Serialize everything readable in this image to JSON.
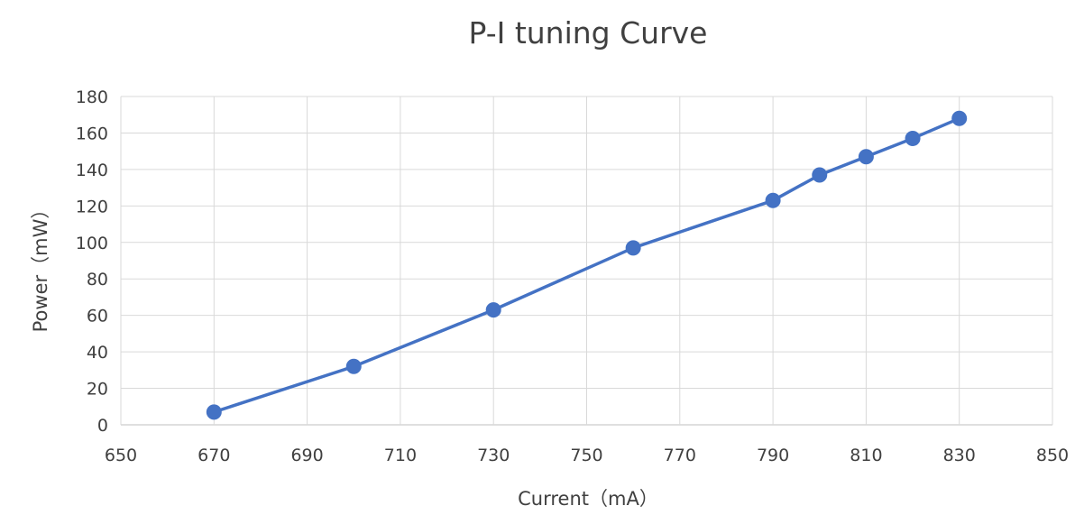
{
  "chart_data": {
    "type": "scatter",
    "title": "P-I  tuning Curve",
    "xlabel": "Current（mA）",
    "ylabel": "Power（mW）",
    "xlim": [
      650,
      850
    ],
    "ylim": [
      0,
      180
    ],
    "x_ticks": [
      650,
      670,
      690,
      710,
      730,
      750,
      770,
      790,
      810,
      830,
      850
    ],
    "y_ticks": [
      0,
      20,
      40,
      60,
      80,
      100,
      120,
      140,
      160,
      180
    ],
    "grid": true,
    "legend": "none",
    "series_color": "#4472c4",
    "series": [
      {
        "x": [
          670,
          700,
          730,
          760,
          790,
          800,
          810,
          820,
          830
        ],
        "y": [
          7,
          32,
          63,
          97,
          123,
          137,
          147,
          157,
          168
        ]
      }
    ]
  }
}
